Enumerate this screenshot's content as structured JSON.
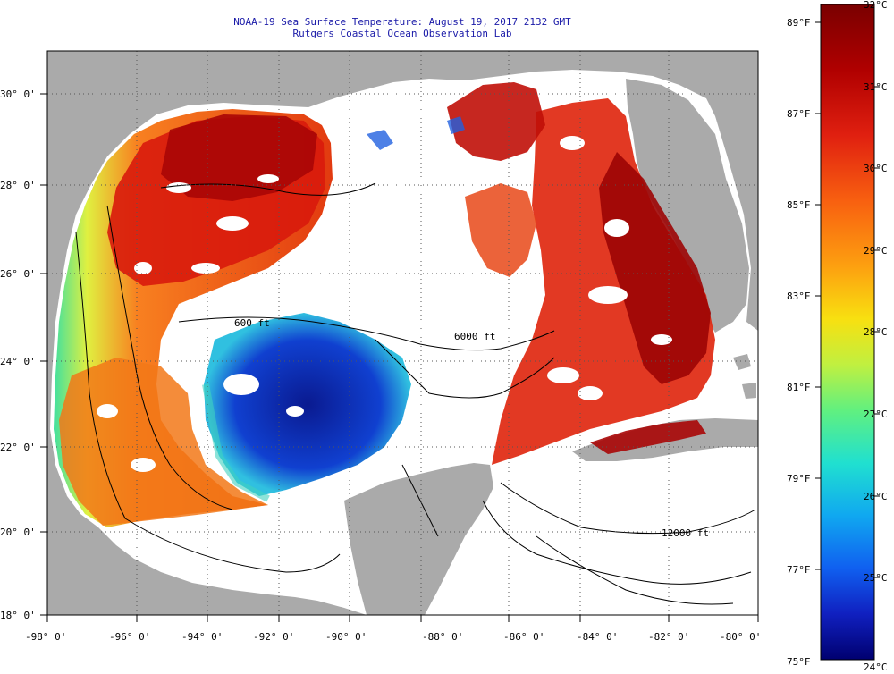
{
  "title": {
    "line1": "NOAA-19 Sea Surface Temperature:  August 19, 2017 2132 GMT",
    "line2": "Rutgers Coastal Ocean Observation Lab"
  },
  "map": {
    "lon_labels": [
      "-98° 0'",
      "-96° 0'",
      "-94° 0'",
      "-92° 0'",
      "-90° 0'",
      "-88° 0'",
      "-86° 0'",
      "-84° 0'",
      "-82° 0'",
      "-80° 0'"
    ],
    "lat_labels": [
      "30° 0'",
      "28° 0'",
      "26° 0'",
      "24° 0'",
      "22° 0'",
      "20° 0'",
      "18° 0'"
    ],
    "contour_labels": [
      "600 ft",
      "6000 ft",
      "12000 ft"
    ]
  },
  "colorbar": {
    "fahrenheit_labels": [
      "89°F",
      "87°F",
      "85°F",
      "83°F",
      "81°F",
      "79°F",
      "77°F",
      "75°F"
    ],
    "celsius_labels": [
      "32°C",
      "31°C",
      "30°C",
      "29°C",
      "28°C",
      "27°C",
      "26°C",
      "25°C",
      "24°C"
    ],
    "scale_colors": [
      "#7a0000",
      "#a50000",
      "#d01010",
      "#ee3010",
      "#f86010",
      "#fd9010",
      "#ffcc10",
      "#f0f020",
      "#b0f040",
      "#60f080",
      "#20e0d0",
      "#10b0f0",
      "#1070f0",
      "#1030d0",
      "#0010a0",
      "#000070"
    ]
  },
  "colors": {
    "land": "#aaaaaa",
    "cloud": "#ffffff",
    "title": "#1a1aa8"
  }
}
